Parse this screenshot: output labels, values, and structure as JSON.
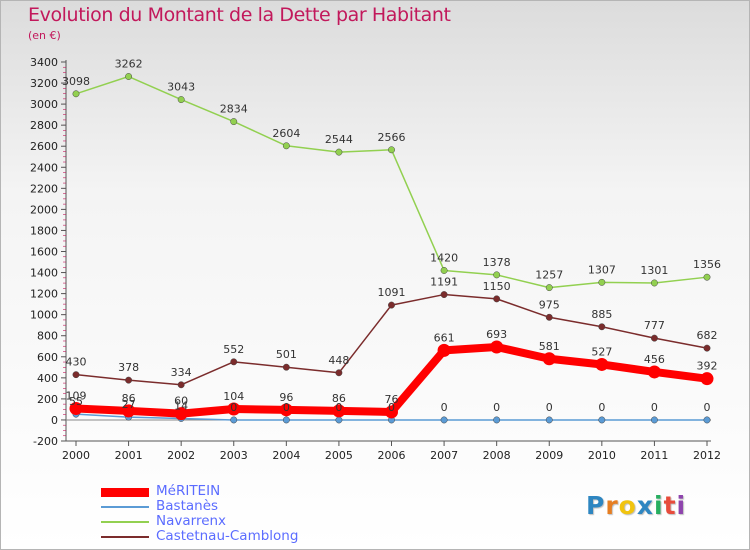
{
  "chart_data": {
    "type": "line",
    "title": "Evolution du Montant de la Dette par Habitant",
    "subtitle": "(en €)",
    "xlabel": "",
    "ylabel": "",
    "x": [
      "2000",
      "2001",
      "2002",
      "2003",
      "2004",
      "2005",
      "2006",
      "2007",
      "2008",
      "2009",
      "2010",
      "2011",
      "2012"
    ],
    "ylim": [
      -200,
      3400
    ],
    "yticks": [
      -200,
      0,
      200,
      400,
      600,
      800,
      1000,
      1200,
      1400,
      1600,
      1800,
      2000,
      2200,
      2400,
      2600,
      2800,
      3000,
      3200,
      3400
    ],
    "grid": false,
    "legend_position": "bottom-left",
    "series": [
      {
        "name": "MéRITEIN",
        "color": "#ff0000",
        "values": [
          109,
          86,
          60,
          104,
          96,
          86,
          76,
          661,
          693,
          581,
          527,
          456,
          392
        ]
      },
      {
        "name": "Bastanès",
        "color": "#5b9bd5",
        "values": [
          55,
          27,
          14,
          0,
          0,
          0,
          0,
          0,
          0,
          0,
          0,
          0,
          0
        ]
      },
      {
        "name": "Navarrenx",
        "color": "#92d050",
        "values": [
          3098,
          3262,
          3043,
          2834,
          2604,
          2544,
          2566,
          1420,
          1378,
          1257,
          1307,
          1301,
          1356
        ]
      },
      {
        "name": "Castetnau-Camblong",
        "color": "#7b2c2c",
        "values": [
          430,
          378,
          334,
          552,
          501,
          448,
          1091,
          1191,
          1150,
          975,
          885,
          777,
          682
        ]
      }
    ],
    "data_labels": [
      {
        "series": 2,
        "values": [
          "3098",
          "3262",
          "3043",
          "2834",
          "2604",
          "2544",
          "2566",
          "1420",
          "1378",
          "1257",
          "1307",
          "1301",
          "1356"
        ]
      },
      {
        "series": 3,
        "values": [
          "430",
          "378",
          "334",
          "552",
          "501",
          "448",
          "1091",
          "1191",
          "1150",
          "975",
          "885",
          "777",
          "682"
        ]
      },
      {
        "series": 0,
        "values": [
          "109",
          "86",
          "60",
          "104",
          "96",
          "86",
          "76",
          "661",
          "693",
          "581",
          "527",
          "456",
          "392"
        ]
      },
      {
        "series": 1,
        "values": [
          "55",
          "27",
          "14",
          "0",
          "0",
          "0",
          "0",
          "0",
          "0",
          "0",
          "0",
          "0",
          "0"
        ]
      }
    ]
  },
  "logo": {
    "letters": [
      "P",
      "r",
      "o",
      "x",
      "i",
      "t",
      "i"
    ]
  }
}
